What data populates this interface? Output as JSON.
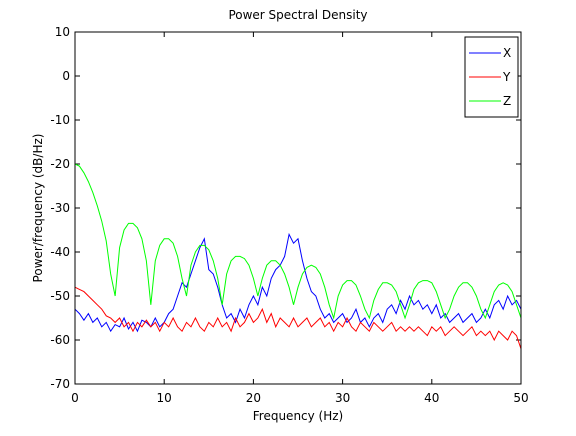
{
  "chart_data": {
    "type": "line",
    "title": "Power Spectral Density",
    "xlabel": "Frequency (Hz)",
    "ylabel": "Power/frequency (dB/Hz)",
    "x": [
      0,
      0.5,
      1,
      1.5,
      2,
      2.5,
      3,
      3.5,
      4,
      4.5,
      5,
      5.5,
      6,
      6.5,
      7,
      7.5,
      8,
      8.5,
      9,
      9.5,
      10,
      10.5,
      11,
      11.5,
      12,
      12.5,
      13,
      13.5,
      14,
      14.5,
      15,
      15.5,
      16,
      16.5,
      17,
      17.5,
      18,
      18.5,
      19,
      19.5,
      20,
      20.5,
      21,
      21.5,
      22,
      22.5,
      23,
      23.5,
      24,
      24.5,
      25,
      25.5,
      26,
      26.5,
      27,
      27.5,
      28,
      28.5,
      29,
      29.5,
      30,
      30.5,
      31,
      31.5,
      32,
      32.5,
      33,
      33.5,
      34,
      34.5,
      35,
      35.5,
      36,
      36.5,
      37,
      37.5,
      38,
      38.5,
      39,
      39.5,
      40,
      40.5,
      41,
      41.5,
      42,
      42.5,
      43,
      43.5,
      44,
      44.5,
      45,
      45.5,
      46,
      46.5,
      47,
      47.5,
      48,
      48.5,
      49,
      49.5,
      50
    ],
    "series": [
      {
        "name": "X",
        "color": "#0000ff",
        "values": [
          -53,
          -54,
          -55.5,
          -54,
          -56,
          -55,
          -57,
          -56,
          -58,
          -56.5,
          -57,
          -55,
          -57.5,
          -56,
          -58,
          -55.5,
          -56,
          -57,
          -55,
          -57,
          -56,
          -54,
          -53,
          -50,
          -47,
          -48,
          -45,
          -42,
          -39,
          -37,
          -44,
          -45,
          -48,
          -52,
          -55,
          -54,
          -56,
          -53,
          -55,
          -52,
          -50,
          -52,
          -48,
          -50,
          -46,
          -44,
          -43,
          -41,
          -36,
          -38,
          -37,
          -42,
          -46,
          -49,
          -50,
          -53,
          -55,
          -54,
          -56,
          -55,
          -54,
          -56,
          -55,
          -53,
          -56,
          -55,
          -57,
          -55,
          -54,
          -56,
          -53,
          -52,
          -54,
          -51,
          -53,
          -50,
          -52,
          -51,
          -53,
          -52,
          -54,
          -52,
          -55,
          -54,
          -56,
          -55,
          -54,
          -56,
          -55,
          -54,
          -56,
          -55,
          -53,
          -55,
          -52,
          -51,
          -53,
          -50,
          -52,
          -51,
          -53
        ]
      },
      {
        "name": "Y",
        "color": "#ff0000",
        "values": [
          -48,
          -48.5,
          -49,
          -50,
          -51,
          -52,
          -53,
          -54.5,
          -55,
          -56,
          -55,
          -57,
          -56,
          -58,
          -56,
          -57,
          -55.5,
          -57,
          -56,
          -58,
          -56,
          -57,
          -55,
          -57,
          -58,
          -56,
          -57,
          -55,
          -57,
          -58,
          -56,
          -57,
          -55,
          -57,
          -56,
          -58,
          -55,
          -57,
          -56,
          -54,
          -56,
          -55,
          -53,
          -56,
          -54,
          -57,
          -55,
          -56,
          -57,
          -55,
          -57,
          -56,
          -55,
          -57,
          -56,
          -55,
          -57,
          -56,
          -58,
          -56,
          -57,
          -55,
          -57,
          -58,
          -56,
          -57,
          -58,
          -56,
          -57,
          -58,
          -57,
          -56,
          -58,
          -57,
          -58,
          -57,
          -58,
          -57,
          -58,
          -59,
          -57,
          -58,
          -57,
          -59,
          -58,
          -57,
          -58,
          -59,
          -58,
          -57,
          -59,
          -58,
          -59,
          -58,
          -60,
          -58,
          -59,
          -60,
          -58,
          -59,
          -62
        ]
      },
      {
        "name": "Z",
        "color": "#00ff00",
        "values": [
          -20,
          -20.5,
          -22,
          -24,
          -26.5,
          -29.5,
          -33,
          -37.5,
          -45,
          -50,
          -39,
          -35,
          -33.5,
          -33.5,
          -34.5,
          -37,
          -42,
          -52,
          -42,
          -38.5,
          -37,
          -37,
          -38,
          -41,
          -46,
          -50,
          -43,
          -40,
          -38.5,
          -38.5,
          -39.5,
          -42,
          -46,
          -52,
          -45,
          -42,
          -41,
          -41,
          -41.5,
          -43,
          -46,
          -50,
          -46,
          -43,
          -42,
          -42,
          -43,
          -45,
          -48,
          -52,
          -48,
          -45,
          -43.5,
          -43,
          -43.5,
          -45,
          -48,
          -52,
          -55,
          -50,
          -47.5,
          -46.5,
          -46.5,
          -47.5,
          -50,
          -53,
          -55,
          -51,
          -48.5,
          -47,
          -47,
          -47.5,
          -49,
          -52,
          -55,
          -52,
          -48.5,
          -47,
          -46.5,
          -46.5,
          -47,
          -49,
          -52,
          -55,
          -53,
          -50,
          -48,
          -47,
          -47,
          -48,
          -50,
          -53,
          -55,
          -52,
          -49,
          -47.5,
          -47,
          -47.5,
          -49,
          -52,
          -55
        ]
      }
    ],
    "xlim": [
      0,
      50
    ],
    "xticks": [
      0,
      10,
      20,
      30,
      40,
      50
    ],
    "ylim": [
      -70,
      10
    ],
    "yticks": [
      -70,
      -60,
      -50,
      -40,
      -30,
      -20,
      -10,
      0,
      10
    ],
    "grid": false,
    "legend": "northeast"
  }
}
